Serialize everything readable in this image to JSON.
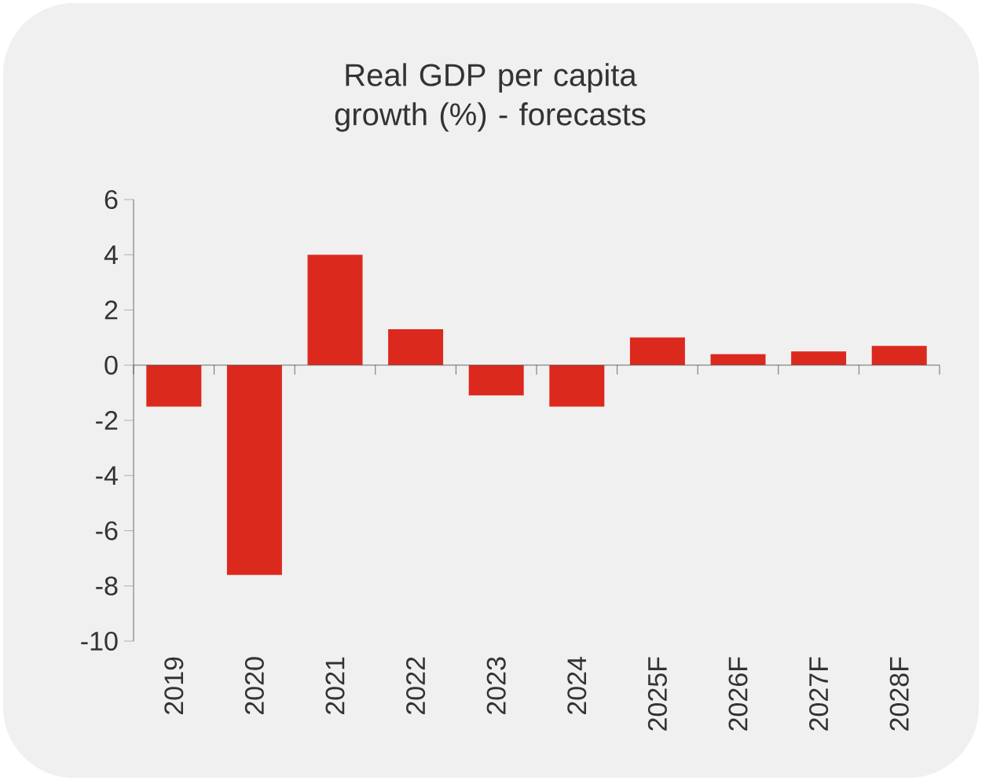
{
  "chart_data": {
    "type": "bar",
    "title": "Real GDP per capita growth (%) - forecasts",
    "categories": [
      "2019",
      "2020",
      "2021",
      "2022",
      "2023",
      "2024",
      "2025F",
      "2026F",
      "2027F",
      "2028F"
    ],
    "values": [
      -1.5,
      -7.6,
      4.0,
      1.3,
      -1.1,
      -1.5,
      1.0,
      0.4,
      0.5,
      0.7
    ],
    "color": "#dc291e",
    "ylim": [
      -10,
      6
    ],
    "yticks": [
      -10,
      -8,
      -6,
      -4,
      -2,
      0,
      2,
      4,
      6
    ]
  }
}
